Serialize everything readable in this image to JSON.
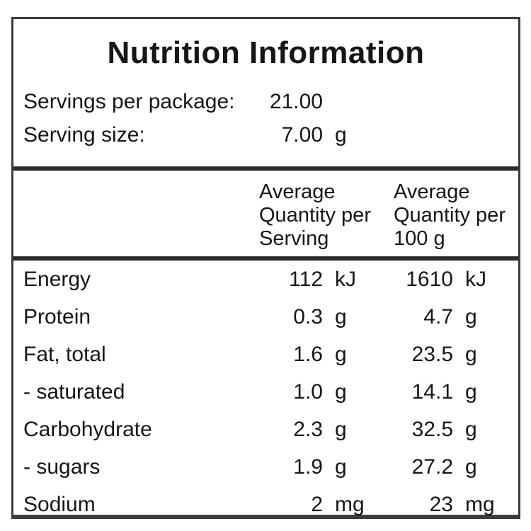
{
  "colors": {
    "background": "#ffffff",
    "text": "#161616",
    "border": "#2c2c2c"
  },
  "label": {
    "title": "Nutrition Information",
    "servings_per_package": {
      "label": "Servings per package:",
      "value": "21.00"
    },
    "serving_size": {
      "label": "Serving size:",
      "value": "7.00",
      "unit": "g"
    },
    "column_headers": {
      "per_serving": "Average\nQuantity per\nServing",
      "per_100g": "Average\nQuantity per\n100 g"
    },
    "rows": [
      {
        "label": "Energy",
        "per_serving": "112",
        "per_serving_unit": "kJ",
        "per_100g": "1610",
        "per_100g_unit": "kJ"
      },
      {
        "label": "Protein",
        "per_serving": "0.3",
        "per_serving_unit": "g",
        "per_100g": "4.7",
        "per_100g_unit": "g"
      },
      {
        "label": "Fat, total",
        "per_serving": "1.6",
        "per_serving_unit": "g",
        "per_100g": "23.5",
        "per_100g_unit": "g"
      },
      {
        "label": "- saturated",
        "per_serving": "1.0",
        "per_serving_unit": "g",
        "per_100g": "14.1",
        "per_100g_unit": "g"
      },
      {
        "label": "Carbohydrate",
        "per_serving": "2.3",
        "per_serving_unit": "g",
        "per_100g": "32.5",
        "per_100g_unit": "g"
      },
      {
        "label": "- sugars",
        "per_serving": "1.9",
        "per_serving_unit": "g",
        "per_100g": "27.2",
        "per_100g_unit": "g"
      },
      {
        "label": "Sodium",
        "per_serving": "2",
        "per_serving_unit": "mg",
        "per_100g": "23",
        "per_100g_unit": "mg"
      }
    ]
  }
}
